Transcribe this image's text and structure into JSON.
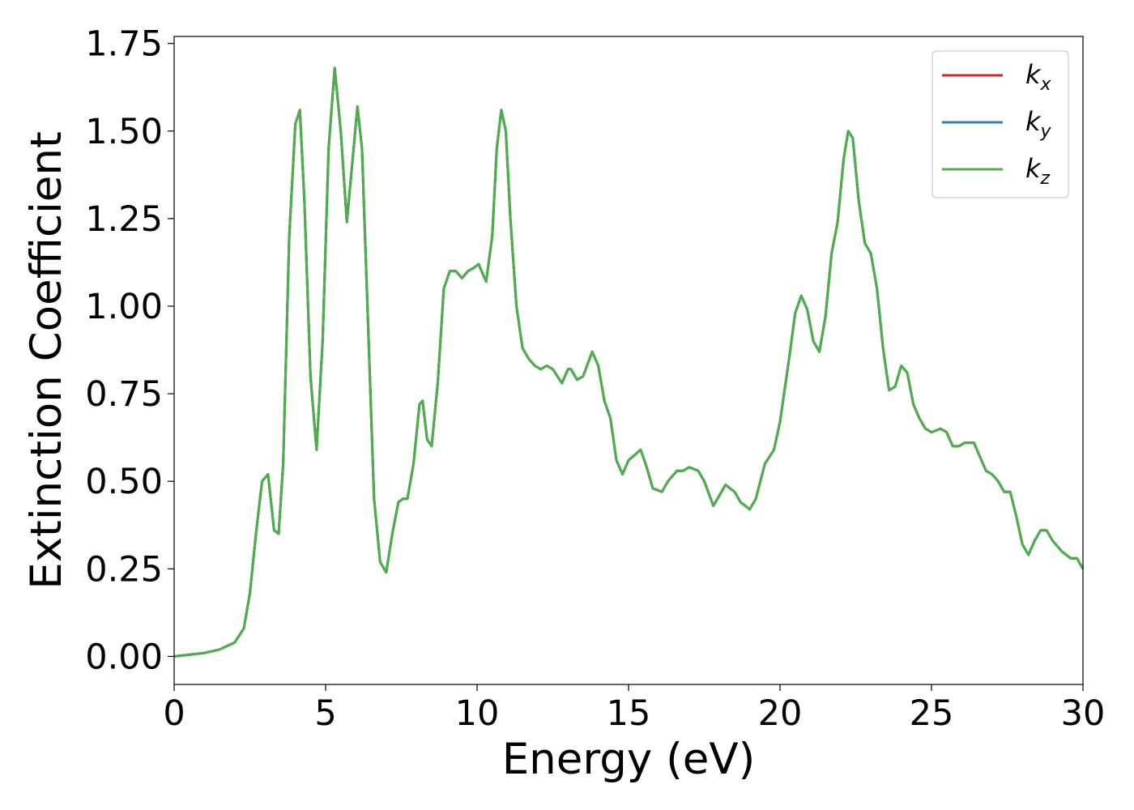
{
  "chart_data": {
    "type": "line",
    "title": "",
    "xlabel": "Energy (eV)",
    "ylabel": "Extinction Coefficient",
    "xlim": [
      0,
      30
    ],
    "ylim": [
      -0.08,
      1.77
    ],
    "xticks": [
      "0",
      "5",
      "10",
      "15",
      "20",
      "25",
      "30"
    ],
    "yticks": [
      "0.00",
      "0.25",
      "0.50",
      "0.75",
      "1.00",
      "1.25",
      "1.50",
      "1.75"
    ],
    "grid": false,
    "legend_position": "top-right",
    "series": [
      {
        "name": "k_x",
        "label_main": "k",
        "label_sub": "x",
        "color": "#d62728",
        "same_as": "k_z"
      },
      {
        "name": "k_y",
        "label_main": "k",
        "label_sub": "y",
        "color": "#377eb8",
        "same_as": "k_z"
      },
      {
        "name": "k_z",
        "label_main": "k",
        "label_sub": "z",
        "color": "#4daf4a",
        "x": [
          0,
          0.5,
          1.0,
          1.5,
          2.0,
          2.3,
          2.5,
          2.7,
          2.9,
          3.1,
          3.3,
          3.45,
          3.6,
          3.8,
          4.0,
          4.15,
          4.3,
          4.5,
          4.7,
          4.9,
          5.1,
          5.3,
          5.5,
          5.7,
          5.85,
          6.05,
          6.2,
          6.4,
          6.6,
          6.8,
          7.0,
          7.2,
          7.4,
          7.55,
          7.7,
          7.9,
          8.1,
          8.2,
          8.35,
          8.5,
          8.7,
          8.9,
          9.1,
          9.3,
          9.5,
          9.7,
          9.9,
          10.05,
          10.3,
          10.5,
          10.65,
          10.8,
          10.95,
          11.1,
          11.3,
          11.5,
          11.7,
          11.9,
          12.1,
          12.3,
          12.5,
          12.8,
          13.0,
          13.1,
          13.3,
          13.5,
          13.8,
          14.0,
          14.2,
          14.4,
          14.6,
          14.8,
          15.0,
          15.4,
          15.6,
          15.8,
          16.1,
          16.3,
          16.6,
          16.8,
          17.0,
          17.3,
          17.5,
          17.8,
          18.0,
          18.2,
          18.5,
          18.7,
          19.0,
          19.2,
          19.5,
          19.8,
          20.0,
          20.3,
          20.5,
          20.7,
          20.9,
          21.1,
          21.3,
          21.5,
          21.7,
          21.9,
          22.1,
          22.25,
          22.4,
          22.6,
          22.8,
          23.0,
          23.2,
          23.4,
          23.6,
          23.8,
          24.0,
          24.2,
          24.4,
          24.6,
          24.8,
          25.0,
          25.3,
          25.5,
          25.7,
          25.9,
          26.1,
          26.4,
          26.6,
          26.8,
          27.0,
          27.2,
          27.4,
          27.6,
          27.8,
          28.0,
          28.2,
          28.4,
          28.6,
          28.8,
          29.0,
          29.3,
          29.6,
          29.8,
          30.0
        ],
        "y": [
          0.0,
          0.005,
          0.01,
          0.02,
          0.04,
          0.08,
          0.18,
          0.35,
          0.5,
          0.52,
          0.36,
          0.35,
          0.55,
          1.2,
          1.52,
          1.56,
          1.3,
          0.8,
          0.59,
          0.9,
          1.45,
          1.68,
          1.5,
          1.24,
          1.38,
          1.57,
          1.45,
          0.95,
          0.45,
          0.27,
          0.24,
          0.35,
          0.44,
          0.45,
          0.45,
          0.55,
          0.72,
          0.73,
          0.62,
          0.6,
          0.78,
          1.05,
          1.1,
          1.1,
          1.08,
          1.1,
          1.11,
          1.12,
          1.07,
          1.2,
          1.45,
          1.56,
          1.5,
          1.25,
          1.0,
          0.88,
          0.85,
          0.83,
          0.82,
          0.83,
          0.82,
          0.78,
          0.82,
          0.82,
          0.79,
          0.8,
          0.87,
          0.83,
          0.73,
          0.68,
          0.56,
          0.52,
          0.56,
          0.59,
          0.54,
          0.48,
          0.47,
          0.5,
          0.53,
          0.53,
          0.54,
          0.53,
          0.5,
          0.43,
          0.46,
          0.49,
          0.47,
          0.44,
          0.42,
          0.45,
          0.55,
          0.59,
          0.67,
          0.85,
          0.98,
          1.03,
          0.99,
          0.9,
          0.87,
          0.97,
          1.15,
          1.24,
          1.42,
          1.5,
          1.48,
          1.3,
          1.18,
          1.15,
          1.05,
          0.88,
          0.76,
          0.77,
          0.83,
          0.81,
          0.72,
          0.68,
          0.65,
          0.64,
          0.65,
          0.64,
          0.6,
          0.6,
          0.61,
          0.61,
          0.57,
          0.53,
          0.52,
          0.5,
          0.47,
          0.47,
          0.4,
          0.32,
          0.29,
          0.33,
          0.36,
          0.36,
          0.33,
          0.3,
          0.28,
          0.28,
          0.25
        ]
      }
    ]
  }
}
